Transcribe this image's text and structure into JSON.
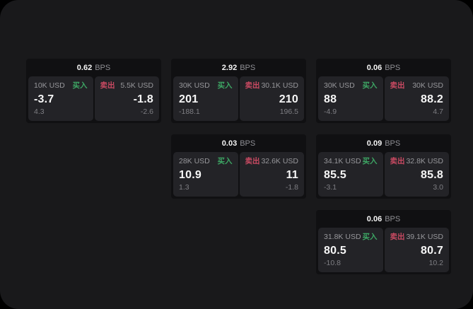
{
  "labels": {
    "bps": "BPS",
    "buy": "买入",
    "sell": "卖出"
  },
  "colors": {
    "outer_bg": "#000000",
    "page_bg": "#19191b",
    "card_bg": "#101012",
    "panel_bg": "#232327",
    "text_primary": "#f7f7f7",
    "text_secondary": "#97979b",
    "text_tertiary": "#7e7e83",
    "buy_green": "#3da664",
    "sell_red": "#c94a62"
  },
  "cards": [
    {
      "bps": "0.62",
      "buy": {
        "amount": "10K USD",
        "value": "-3.7",
        "delta": "4.3"
      },
      "sell": {
        "amount": "5.5K USD",
        "value": "-1.8",
        "delta": "-2.6"
      }
    },
    {
      "bps": "2.92",
      "buy": {
        "amount": "30K USD",
        "value": "201",
        "delta": "-188.1"
      },
      "sell": {
        "amount": "30.1K USD",
        "value": "210",
        "delta": "196.5"
      }
    },
    {
      "bps": "0.06",
      "buy": {
        "amount": "30K USD",
        "value": "88",
        "delta": "-4.9"
      },
      "sell": {
        "amount": "30K USD",
        "value": "88.2",
        "delta": "4.7"
      }
    },
    {
      "bps": "0.03",
      "buy": {
        "amount": "28K USD",
        "value": "10.9",
        "delta": "1.3"
      },
      "sell": {
        "amount": "32.6K USD",
        "value": "11",
        "delta": "-1.8"
      }
    },
    {
      "bps": "0.09",
      "buy": {
        "amount": "34.1K USD",
        "value": "85.5",
        "delta": "-3.1"
      },
      "sell": {
        "amount": "32.8K USD",
        "value": "85.8",
        "delta": "3.0"
      }
    },
    {
      "bps": "0.06",
      "buy": {
        "amount": "31.8K USD",
        "value": "80.5",
        "delta": "-10.8"
      },
      "sell": {
        "amount": "39.1K USD",
        "value": "80.7",
        "delta": "10.2"
      }
    }
  ]
}
